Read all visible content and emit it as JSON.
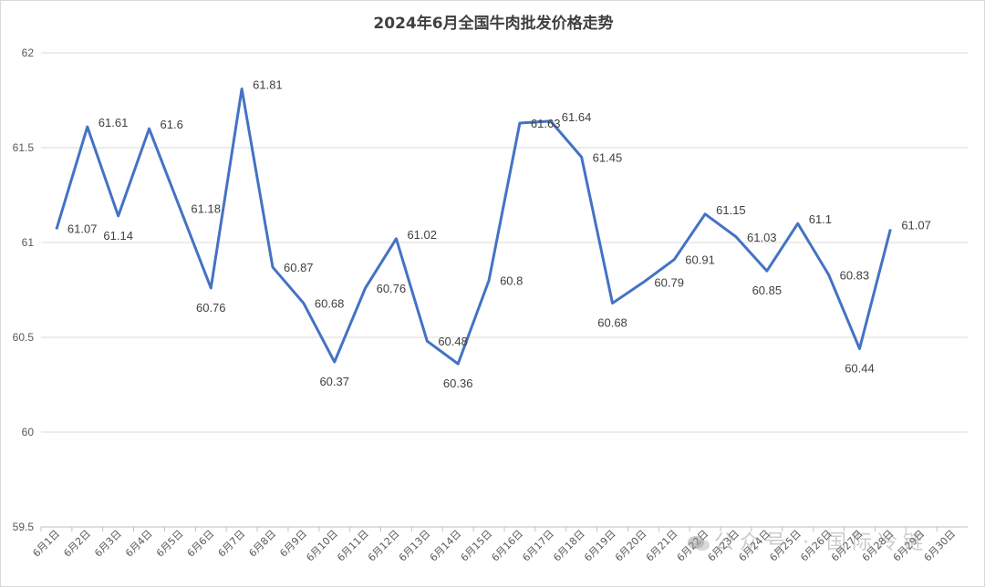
{
  "chart_data": {
    "type": "line",
    "title": "2024年6月全国牛肉批发价格走势",
    "categories": [
      "6月1日",
      "6月2日",
      "6月3日",
      "6月4日",
      "6月5日",
      "6月6日",
      "6月7日",
      "6月8日",
      "6月9日",
      "6月10日",
      "6月11日",
      "6月12日",
      "6月13日",
      "6月14日",
      "6月15日",
      "6月16日",
      "6月17日",
      "6月18日",
      "6月19日",
      "6月20日",
      "6月21日",
      "6月22日",
      "6月23日",
      "6月24日",
      "6月25日",
      "6月26日",
      "6月27日",
      "6月28日",
      "6月29日",
      "6月30日"
    ],
    "series": [
      {
        "values": [
          61.07,
          61.61,
          61.14,
          61.6,
          61.18,
          60.76,
          61.81,
          60.87,
          60.68,
          60.37,
          60.76,
          61.02,
          60.48,
          60.36,
          60.8,
          61.63,
          61.64,
          61.45,
          60.68,
          60.79,
          60.91,
          61.15,
          61.03,
          60.85,
          61.1,
          60.83,
          60.44,
          61.07,
          null,
          null
        ],
        "data_labels": [
          "61.07",
          "61.61",
          "61.14",
          "61.6",
          "61.18",
          "60.76",
          "61.81",
          "60.87",
          "60.68",
          "60.37",
          "60.76",
          "61.02",
          "60.48",
          "60.36",
          "60.8",
          "61.63",
          "61.64",
          "61.45",
          "60.68",
          "60.79",
          "60.91",
          "61.15",
          "61.03",
          "60.85",
          "61.1",
          "60.83",
          "60.44",
          "61.07"
        ]
      }
    ],
    "yticks": [
      "59.5",
      "60",
      "60.5",
      "61",
      "61.5",
      "62"
    ],
    "ylim": [
      59.5,
      62
    ],
    "grid": true,
    "line_color": "#4472C4"
  },
  "watermark": "公众号 · 国际冷链"
}
